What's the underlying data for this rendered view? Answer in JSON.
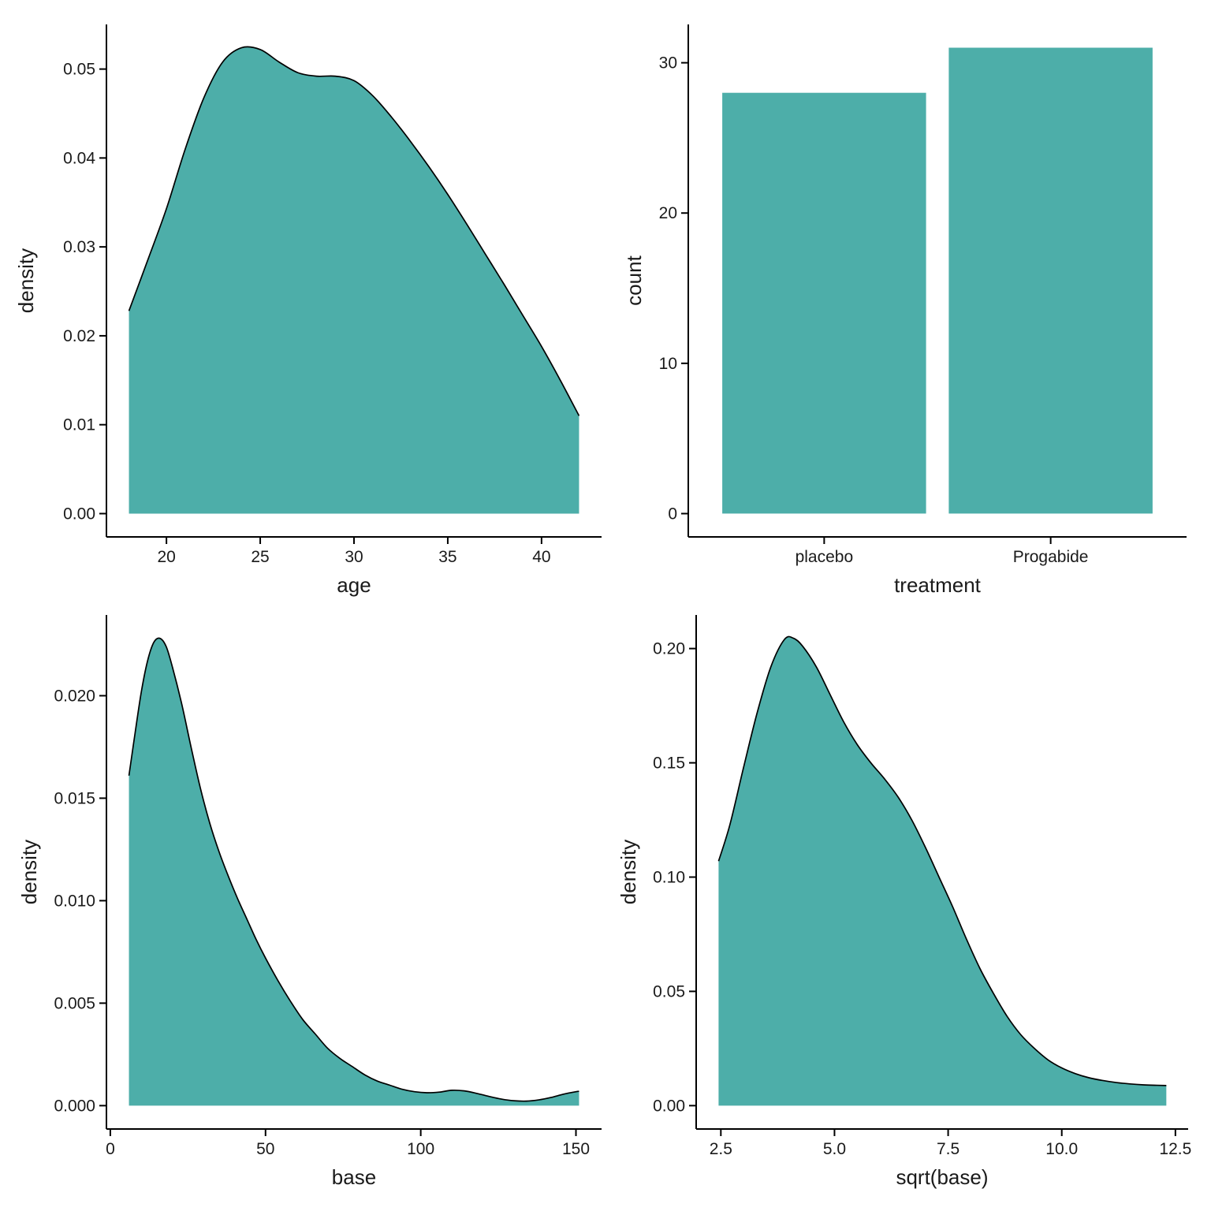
{
  "style": {
    "fill_color": "#4DAEA9",
    "outline_color": "#000000",
    "axis_color": "#000000",
    "tick_label_color": "#1a1a1a",
    "background": "#ffffff"
  },
  "chart_data": [
    {
      "name": "age-density",
      "type": "area",
      "title": "",
      "xlabel": "age",
      "ylabel": "density",
      "xlim": [
        16.8,
        43.2
      ],
      "ylim": [
        -0.00262,
        0.05502
      ],
      "grid": false,
      "legend": "none",
      "xticks": {
        "values": [
          20,
          25,
          30,
          35,
          40
        ],
        "labels": [
          "20",
          "25",
          "30",
          "35",
          "40"
        ]
      },
      "yticks": {
        "values": [
          0,
          0.01,
          0.02,
          0.03,
          0.04,
          0.05
        ],
        "labels": [
          "0.00",
          "0.01",
          "0.02",
          "0.03",
          "0.04",
          "0.05"
        ]
      },
      "series": {
        "x": [
          18,
          19,
          20,
          21,
          22,
          23,
          24,
          25,
          26,
          27,
          28,
          29,
          30,
          31,
          32,
          33,
          34,
          35,
          36,
          37,
          38,
          39,
          40,
          41,
          42
        ],
        "y": [
          0.0228,
          0.0285,
          0.0343,
          0.041,
          0.0468,
          0.0508,
          0.0524,
          0.0522,
          0.0508,
          0.0496,
          0.0492,
          0.0492,
          0.0487,
          0.047,
          0.0446,
          0.0419,
          0.039,
          0.0359,
          0.0326,
          0.0292,
          0.0258,
          0.0223,
          0.0188,
          0.015,
          0.011
        ]
      }
    },
    {
      "name": "treatment-count",
      "type": "bar",
      "title": "",
      "xlabel": "treatment",
      "ylabel": "count",
      "categories": [
        "placebo",
        "Progabide"
      ],
      "values": [
        28,
        31
      ],
      "bar_centers": [
        1,
        2
      ],
      "bar_width": 0.9,
      "xlim": [
        0.4,
        2.6
      ],
      "ylim": [
        -1.55,
        32.55
      ],
      "grid": false,
      "legend": "none",
      "yticks": {
        "values": [
          0,
          10,
          20,
          30
        ],
        "labels": [
          "0",
          "10",
          "20",
          "30"
        ]
      }
    },
    {
      "name": "base-density",
      "type": "area",
      "title": "",
      "xlabel": "base",
      "ylabel": "density",
      "xlim": [
        -1.25,
        158.25
      ],
      "ylim": [
        -0.00114,
        0.02394
      ],
      "grid": false,
      "legend": "none",
      "xticks": {
        "values": [
          0,
          50,
          100,
          150
        ],
        "labels": [
          "0",
          "50",
          "100",
          "150"
        ]
      },
      "yticks": {
        "values": [
          0,
          0.005,
          0.01,
          0.015,
          0.02
        ],
        "labels": [
          "0.000",
          "0.005",
          "0.010",
          "0.015",
          "0.020"
        ]
      },
      "series": {
        "x": [
          6,
          8,
          10,
          12,
          14,
          16,
          18,
          20,
          23,
          26,
          29,
          32,
          35,
          38,
          41,
          44,
          47,
          50,
          54,
          58,
          62,
          66,
          70,
          74,
          78,
          82,
          86,
          90,
          94,
          98,
          102,
          106,
          110,
          114,
          118,
          122,
          126,
          130,
          134,
          138,
          142,
          146,
          150,
          151
        ],
        "y": [
          0.0161,
          0.0182,
          0.0202,
          0.0217,
          0.0226,
          0.0228,
          0.0224,
          0.0214,
          0.0196,
          0.0175,
          0.0155,
          0.0138,
          0.0124,
          0.0112,
          0.0101,
          0.0091,
          0.0081,
          0.0072,
          0.0061,
          0.0051,
          0.0042,
          0.0035,
          0.0028,
          0.0023,
          0.0019,
          0.0015,
          0.0012,
          0.001,
          0.0008,
          0.00068,
          0.00063,
          0.00066,
          0.00075,
          0.00072,
          0.0006,
          0.00045,
          0.00032,
          0.00024,
          0.00022,
          0.00028,
          0.0004,
          0.00056,
          0.00068,
          0.0007
        ]
      }
    },
    {
      "name": "sqrt-base-density",
      "type": "area",
      "title": "",
      "xlabel": "sqrt(base)",
      "ylabel": "density",
      "xlim": [
        1.957,
        12.78
      ],
      "ylim": [
        -0.010225,
        0.2147
      ],
      "grid": false,
      "legend": "none",
      "xticks": {
        "values": [
          2.5,
          5.0,
          7.5,
          10.0,
          12.5
        ],
        "labels": [
          "2.5",
          "5.0",
          "7.5",
          "10.0",
          "12.5"
        ]
      },
      "yticks": {
        "values": [
          0,
          0.05,
          0.1,
          0.15,
          0.2
        ],
        "labels": [
          "0.00",
          "0.05",
          "0.10",
          "0.15",
          "0.20"
        ]
      },
      "series": {
        "x": [
          2.45,
          2.7,
          3.0,
          3.3,
          3.6,
          3.9,
          4.1,
          4.3,
          4.6,
          4.9,
          5.2,
          5.5,
          5.8,
          6.1,
          6.4,
          6.7,
          7.0,
          7.3,
          7.6,
          7.9,
          8.2,
          8.5,
          8.8,
          9.1,
          9.4,
          9.7,
          10.0,
          10.3,
          10.6,
          10.9,
          11.2,
          11.5,
          11.8,
          12.1,
          12.3
        ],
        "y": [
          0.107,
          0.123,
          0.148,
          0.172,
          0.192,
          0.204,
          0.2045,
          0.201,
          0.192,
          0.18,
          0.168,
          0.158,
          0.15,
          0.143,
          0.135,
          0.125,
          0.113,
          0.1,
          0.087,
          0.073,
          0.06,
          0.049,
          0.039,
          0.031,
          0.025,
          0.02,
          0.0165,
          0.014,
          0.0122,
          0.011,
          0.0101,
          0.0095,
          0.0091,
          0.0089,
          0.0088
        ]
      }
    }
  ]
}
